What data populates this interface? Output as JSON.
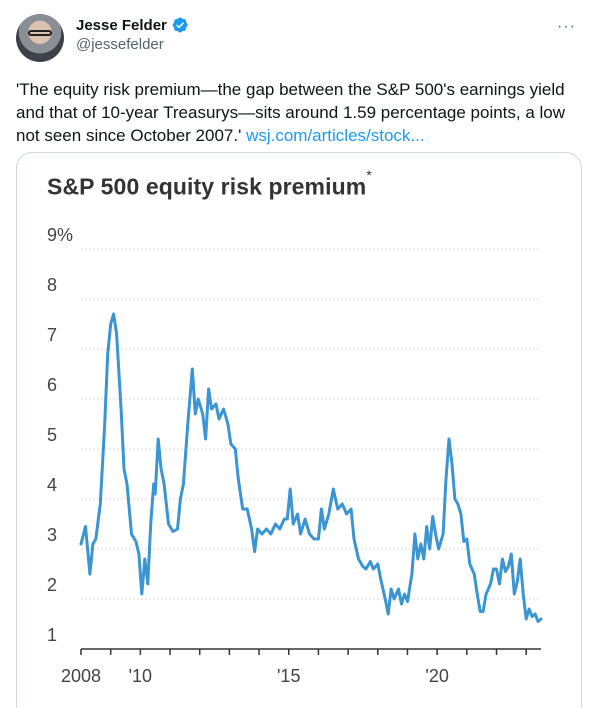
{
  "tweet": {
    "display_name": "Jesse Felder",
    "handle": "@jessefelder",
    "more_label": "···",
    "text": "'The equity risk premium—the gap between the S&P 500's earnings yield and that of 10-year Treasurys—sits around 1.59 percentage points, a low not seen since October 2007.' ",
    "link_text": "wsj.com/articles/stock..."
  },
  "colors": {
    "accent": "#1d9bf0",
    "series": "#3a95d1"
  },
  "icons": {
    "verified": "verified-badge-icon",
    "more": "more-options-icon"
  },
  "chart_data": {
    "type": "line",
    "title": "S&P 500 equity risk premium",
    "title_mark": "*",
    "ylim": [
      1,
      9
    ],
    "yticks": [
      "9%",
      "8",
      "7",
      "6",
      "5",
      "4",
      "3",
      "2",
      "1"
    ],
    "xlim": [
      2008,
      2023.5
    ],
    "xticks": [
      {
        "value": 2008,
        "label": "2008"
      },
      {
        "value": 2010,
        "label": "'10"
      },
      {
        "value": 2015,
        "label": "'15"
      },
      {
        "value": 2020,
        "label": "'20"
      }
    ],
    "series": [
      {
        "values": [
          [
            2008.0,
            3.1
          ],
          [
            2008.15,
            3.45
          ],
          [
            2008.3,
            2.5
          ],
          [
            2008.4,
            3.1
          ],
          [
            2008.5,
            3.2
          ],
          [
            2008.65,
            3.9
          ],
          [
            2008.8,
            5.5
          ],
          [
            2008.9,
            6.9
          ],
          [
            2009.0,
            7.5
          ],
          [
            2009.1,
            7.7
          ],
          [
            2009.2,
            7.3
          ],
          [
            2009.35,
            5.8
          ],
          [
            2009.45,
            4.6
          ],
          [
            2009.55,
            4.3
          ],
          [
            2009.7,
            3.3
          ],
          [
            2009.85,
            3.15
          ],
          [
            2009.95,
            2.9
          ],
          [
            2010.05,
            2.1
          ],
          [
            2010.15,
            2.8
          ],
          [
            2010.25,
            2.3
          ],
          [
            2010.35,
            3.5
          ],
          [
            2010.45,
            4.3
          ],
          [
            2010.5,
            4.1
          ],
          [
            2010.6,
            5.2
          ],
          [
            2010.7,
            4.6
          ],
          [
            2010.8,
            4.3
          ],
          [
            2010.95,
            3.5
          ],
          [
            2011.1,
            3.35
          ],
          [
            2011.25,
            3.4
          ],
          [
            2011.35,
            4.0
          ],
          [
            2011.45,
            4.3
          ],
          [
            2011.6,
            5.5
          ],
          [
            2011.75,
            6.6
          ],
          [
            2011.85,
            5.7
          ],
          [
            2011.95,
            6.0
          ],
          [
            2012.1,
            5.7
          ],
          [
            2012.2,
            5.2
          ],
          [
            2012.3,
            6.2
          ],
          [
            2012.4,
            5.8
          ],
          [
            2012.55,
            5.9
          ],
          [
            2012.65,
            5.6
          ],
          [
            2012.8,
            5.8
          ],
          [
            2012.95,
            5.5
          ],
          [
            2013.05,
            5.1
          ],
          [
            2013.2,
            5.0
          ],
          [
            2013.3,
            4.4
          ],
          [
            2013.45,
            3.8
          ],
          [
            2013.6,
            3.8
          ],
          [
            2013.75,
            3.4
          ],
          [
            2013.85,
            2.95
          ],
          [
            2013.95,
            3.4
          ],
          [
            2014.1,
            3.3
          ],
          [
            2014.25,
            3.4
          ],
          [
            2014.4,
            3.3
          ],
          [
            2014.55,
            3.5
          ],
          [
            2014.7,
            3.4
          ],
          [
            2014.85,
            3.6
          ],
          [
            2014.95,
            3.6
          ],
          [
            2015.05,
            4.2
          ],
          [
            2015.15,
            3.5
          ],
          [
            2015.3,
            3.7
          ],
          [
            2015.4,
            3.3
          ],
          [
            2015.55,
            3.6
          ],
          [
            2015.7,
            3.3
          ],
          [
            2015.85,
            3.2
          ],
          [
            2016.0,
            3.2
          ],
          [
            2016.1,
            3.8
          ],
          [
            2016.2,
            3.4
          ],
          [
            2016.35,
            3.7
          ],
          [
            2016.5,
            4.2
          ],
          [
            2016.65,
            3.8
          ],
          [
            2016.8,
            3.9
          ],
          [
            2016.95,
            3.7
          ],
          [
            2017.1,
            3.8
          ],
          [
            2017.2,
            3.2
          ],
          [
            2017.35,
            2.8
          ],
          [
            2017.5,
            2.65
          ],
          [
            2017.6,
            2.6
          ],
          [
            2017.75,
            2.75
          ],
          [
            2017.85,
            2.6
          ],
          [
            2018.0,
            2.7
          ],
          [
            2018.1,
            2.4
          ],
          [
            2018.25,
            2.0
          ],
          [
            2018.35,
            1.7
          ],
          [
            2018.45,
            2.2
          ],
          [
            2018.55,
            2.0
          ],
          [
            2018.7,
            2.2
          ],
          [
            2018.8,
            1.9
          ],
          [
            2018.9,
            2.1
          ],
          [
            2019.0,
            1.95
          ],
          [
            2019.15,
            2.5
          ],
          [
            2019.25,
            3.3
          ],
          [
            2019.35,
            2.8
          ],
          [
            2019.45,
            3.1
          ],
          [
            2019.55,
            2.8
          ],
          [
            2019.65,
            3.45
          ],
          [
            2019.75,
            3.0
          ],
          [
            2019.85,
            3.65
          ],
          [
            2019.95,
            3.3
          ],
          [
            2020.05,
            3.0
          ],
          [
            2020.2,
            3.3
          ],
          [
            2020.3,
            4.4
          ],
          [
            2020.4,
            5.2
          ],
          [
            2020.5,
            4.7
          ],
          [
            2020.6,
            4.0
          ],
          [
            2020.7,
            3.9
          ],
          [
            2020.8,
            3.7
          ],
          [
            2020.9,
            3.15
          ],
          [
            2021.0,
            3.2
          ],
          [
            2021.1,
            2.7
          ],
          [
            2021.25,
            2.5
          ],
          [
            2021.35,
            2.1
          ],
          [
            2021.45,
            1.75
          ],
          [
            2021.55,
            1.75
          ],
          [
            2021.65,
            2.1
          ],
          [
            2021.8,
            2.3
          ],
          [
            2021.9,
            2.6
          ],
          [
            2022.0,
            2.6
          ],
          [
            2022.1,
            2.3
          ],
          [
            2022.2,
            2.8
          ],
          [
            2022.3,
            2.55
          ],
          [
            2022.4,
            2.65
          ],
          [
            2022.5,
            2.9
          ],
          [
            2022.6,
            2.1
          ],
          [
            2022.7,
            2.35
          ],
          [
            2022.8,
            2.8
          ],
          [
            2022.9,
            2.1
          ],
          [
            2023.0,
            1.6
          ],
          [
            2023.1,
            1.8
          ],
          [
            2023.2,
            1.65
          ],
          [
            2023.3,
            1.7
          ],
          [
            2023.4,
            1.55
          ],
          [
            2023.5,
            1.6
          ]
        ]
      }
    ]
  }
}
